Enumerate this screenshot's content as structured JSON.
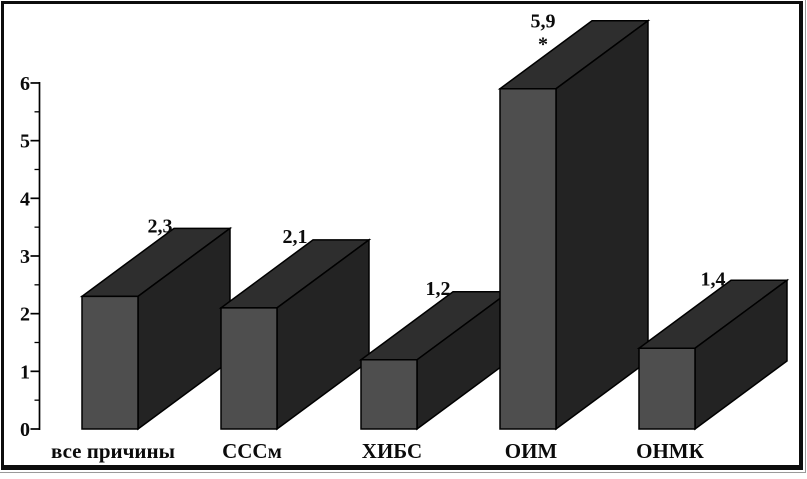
{
  "chart_data": {
    "type": "bar",
    "style": "3d-block-bars",
    "title": "",
    "xlabel": "",
    "ylabel": "",
    "categories": [
      "все причины",
      "СССм",
      "ХИБС",
      "ОИМ",
      "ОНМК"
    ],
    "values": [
      2.3,
      2.1,
      1.2,
      5.9,
      1.4
    ],
    "value_labels": [
      "2,3",
      "2,1",
      "1,2",
      "5,9",
      "1,4"
    ],
    "point_markers": [
      "",
      "",
      "",
      "*",
      ""
    ],
    "ylim": [
      0,
      6
    ],
    "y_major_step": 1,
    "y_minor_step": 0.5,
    "y_tick_labels": [
      "0",
      "1",
      "2",
      "3",
      "4",
      "5",
      "6"
    ],
    "grid": false,
    "legend": "none",
    "colors": {
      "bar_front": "#4e4e4e",
      "bar_top": "#2e2e2e",
      "bar_side": "#232323",
      "outline": "#000000",
      "axis": "#000000",
      "text": "#0b0b0b",
      "background": "#ffffff",
      "frame": "#0d0d0d"
    }
  }
}
